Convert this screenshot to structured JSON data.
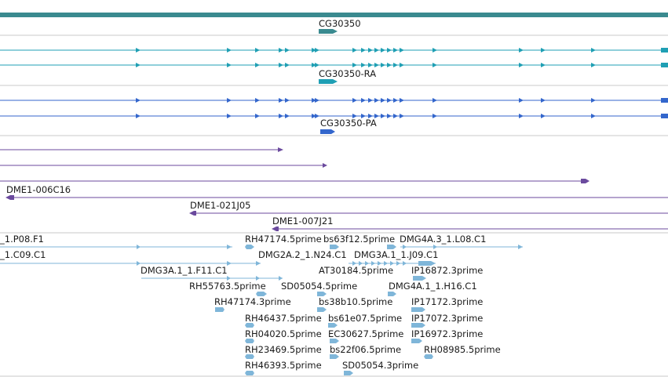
{
  "colors": {
    "gene": "#3a8a8f",
    "gene_model": "#1f9fb4",
    "transcript": "#3366cc",
    "clone": "#6b4a9e",
    "est": "#7fb6d9",
    "separator": "#c8c8c8",
    "label": "#1a1a1a"
  },
  "gene": {
    "label": "CG30350"
  },
  "gene_models": {
    "label": "CG30350-RA"
  },
  "transcripts": {
    "label": "CG30350-PA"
  },
  "clones": [
    {
      "label": "",
      "strand": "+"
    },
    {
      "label": "",
      "strand": "+"
    },
    {
      "label": "",
      "strand": "+"
    },
    {
      "label": "DME1-006C16",
      "strand": "-"
    },
    {
      "label": "DME1-021J05",
      "strand": "-"
    },
    {
      "label": "DME1-007J21",
      "strand": "-"
    }
  ],
  "ests": [
    {
      "label": "_1.P08.F1"
    },
    {
      "label": "_1.C09.C1"
    },
    {
      "label": "RH47174.5prime"
    },
    {
      "label": "bs63f12.5prime"
    },
    {
      "label": "DMG4A.3_1.L08.C1"
    },
    {
      "label": "DMG2A.2_1.N24.C1"
    },
    {
      "label": "DMG3A.1_1.J09.C1"
    },
    {
      "label": "DMG3A.1_1.F11.C1"
    },
    {
      "label": "AT30184.5prime"
    },
    {
      "label": "IP16872.3prime"
    },
    {
      "label": "RH55763.5prime"
    },
    {
      "label": "SD05054.5prime"
    },
    {
      "label": "DMG4A.1_1.H16.C1"
    },
    {
      "label": "RH47174.3prime"
    },
    {
      "label": "bs38b10.5prime"
    },
    {
      "label": "IP17172.3prime"
    },
    {
      "label": "RH46437.5prime"
    },
    {
      "label": "bs61e07.5prime"
    },
    {
      "label": "IP17072.3prime"
    },
    {
      "label": "RH04020.5prime"
    },
    {
      "label": "EC30627.5prime"
    },
    {
      "label": "IP16972.3prime"
    },
    {
      "label": "RH23469.5prime"
    },
    {
      "label": "bs22f06.5prime"
    },
    {
      "label": "RH08985.5prime"
    },
    {
      "label": "RH46393.5prime"
    },
    {
      "label": "SD05054.3prime"
    }
  ]
}
